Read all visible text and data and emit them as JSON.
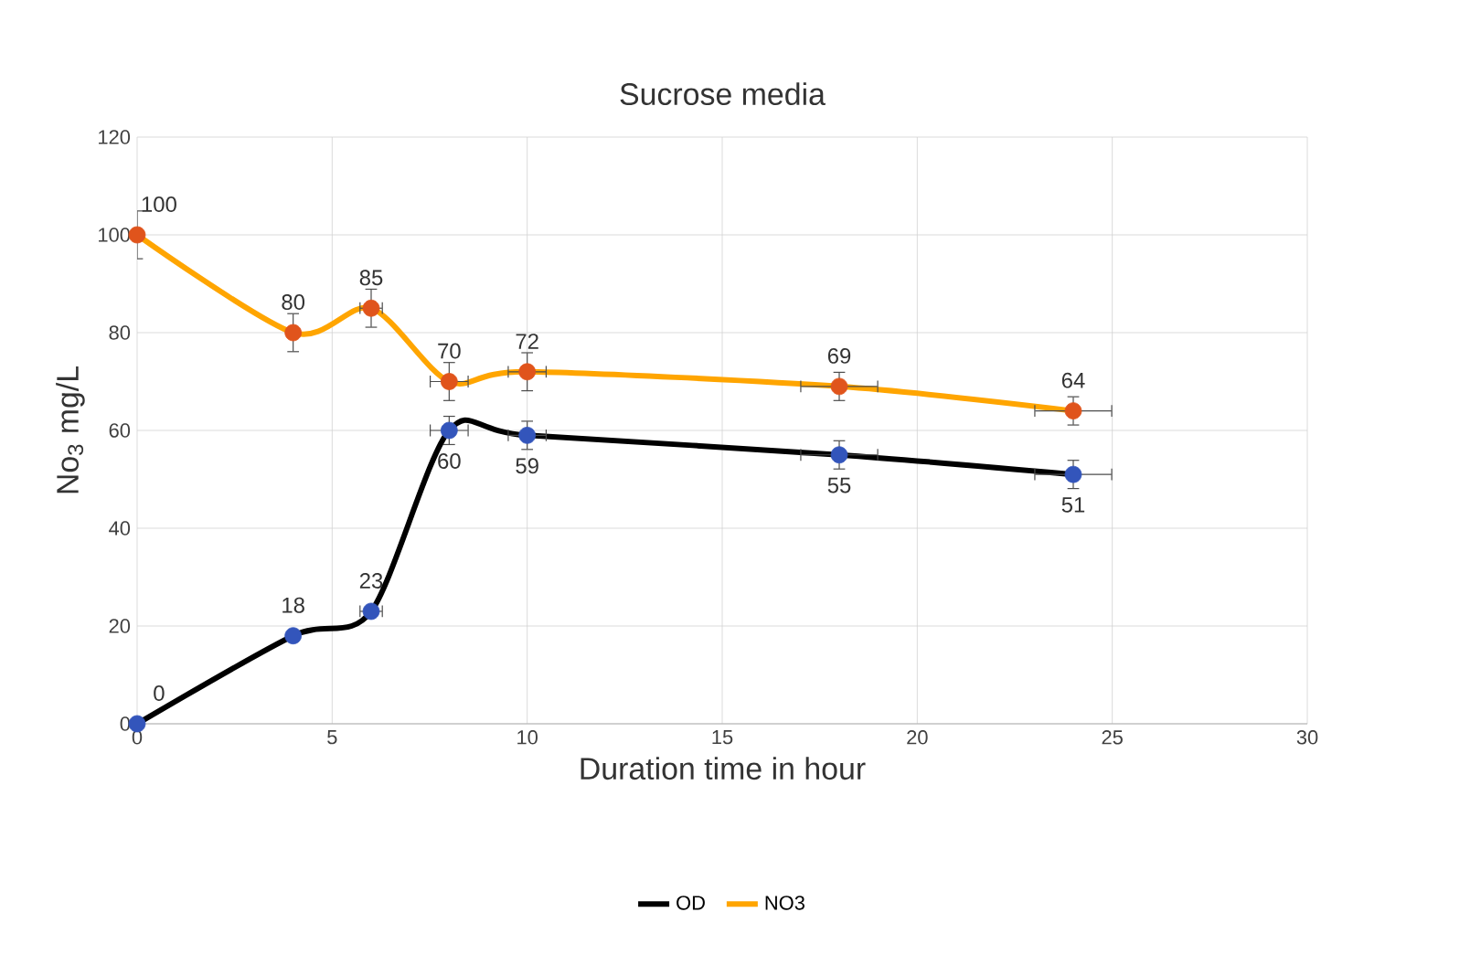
{
  "chart_data": {
    "type": "line",
    "title": "Sucrose media",
    "xlabel": "Duration time in hour",
    "ylabel": "No$_{3}$ mg/L",
    "xlim": [
      0,
      30
    ],
    "xticks": [
      0,
      5,
      10,
      15,
      20,
      25,
      30
    ],
    "ylim": [
      0,
      120
    ],
    "yticks": [
      0,
      20,
      40,
      60,
      80,
      100,
      120
    ],
    "grid": true,
    "legend": "bottom",
    "marker": "circle",
    "data_labels": true,
    "series": [
      {
        "name": "OD",
        "color": "#000000",
        "colors": [
          "#3355bb",
          "#3355bb",
          "#3355bb",
          "#3355bb",
          "#3355bb",
          "#3355bb",
          "#3355bb"
        ],
        "x": [
          0,
          4,
          6,
          8,
          10,
          18,
          24
        ],
        "values": [
          0,
          18,
          23,
          60,
          59,
          55,
          51
        ],
        "errors": [
          null,
          null,
          1,
          3,
          3,
          3,
          3
        ],
        "xerrors": [
          null,
          null,
          0.3,
          0.5,
          0.5,
          1,
          1
        ]
      },
      {
        "name": "NO3",
        "color": "#ffa500",
        "colors": [
          "#e0541c",
          "#e0541c",
          "#e0541c",
          "#e0541c",
          "#e0541c",
          "#e0541c",
          "#e0541c"
        ],
        "x": [
          0,
          4,
          6,
          8,
          10,
          18,
          24
        ],
        "values": [
          100,
          80,
          85,
          70,
          72,
          69,
          64
        ],
        "errors": [
          5,
          4,
          4,
          4,
          4,
          3,
          3
        ],
        "xerrors": [
          null,
          null,
          0.3,
          0.5,
          0.5,
          1,
          1
        ]
      }
    ]
  }
}
